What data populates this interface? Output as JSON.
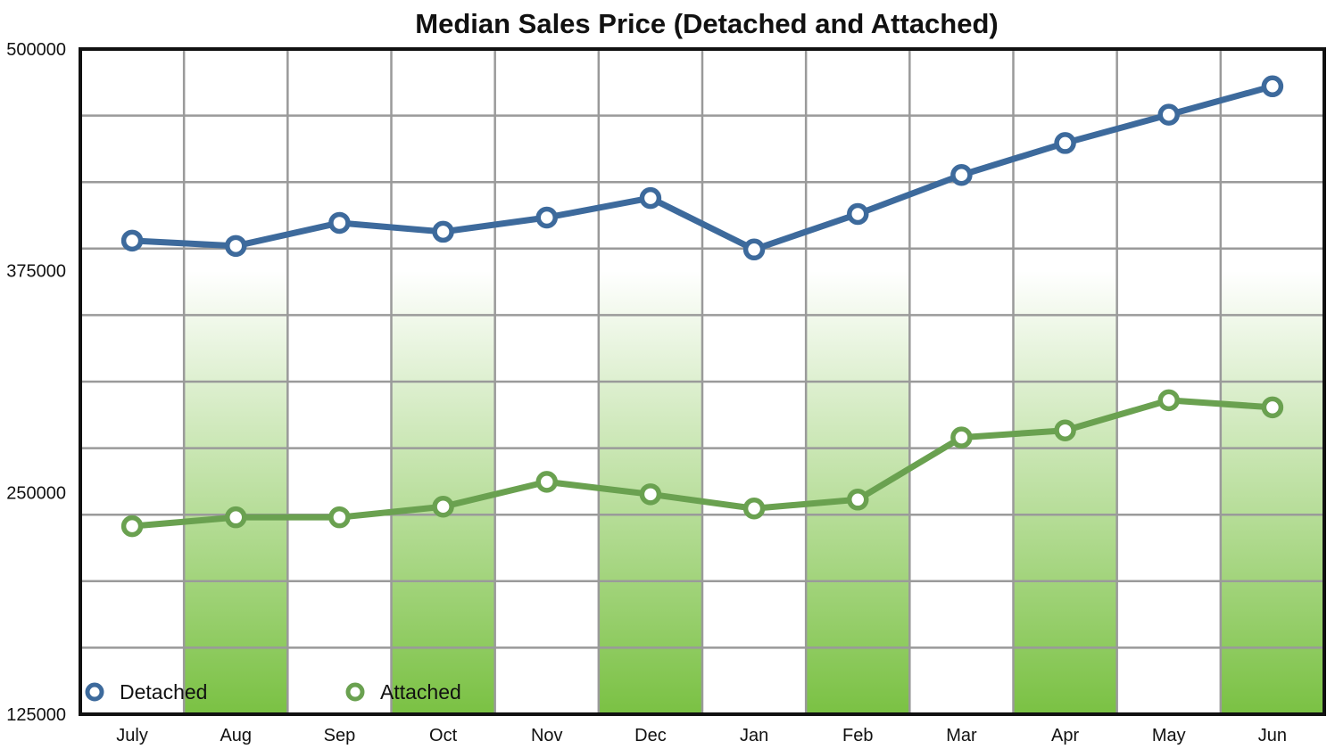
{
  "chart_data": {
    "type": "line",
    "title": "Median Sales Price (Detached and Attached)",
    "xlabel": "",
    "ylabel": "",
    "categories": [
      "July",
      "Aug",
      "Sep",
      "Oct",
      "Nov",
      "Dec",
      "Jan",
      "Feb",
      "Mar",
      "Apr",
      "May",
      "Jun"
    ],
    "ylim": [
      125000,
      500000
    ],
    "yticks": [
      125000,
      250000,
      375000,
      500000
    ],
    "ytick_labels": [
      "125000",
      "250000",
      "375000",
      "500000"
    ],
    "grid": true,
    "legend_position": "bottom-left",
    "series": [
      {
        "name": "Detached",
        "color": "#3d6a9c",
        "values": [
          392000,
          389000,
          402000,
          397000,
          405000,
          416000,
          387000,
          407000,
          429000,
          447000,
          463000,
          479000
        ]
      },
      {
        "name": "Attached",
        "color": "#6aa150",
        "values": [
          231000,
          236000,
          236000,
          242000,
          256000,
          249000,
          241000,
          246000,
          281000,
          285000,
          302000,
          298000
        ]
      }
    ],
    "band_color": "#7ac143"
  }
}
